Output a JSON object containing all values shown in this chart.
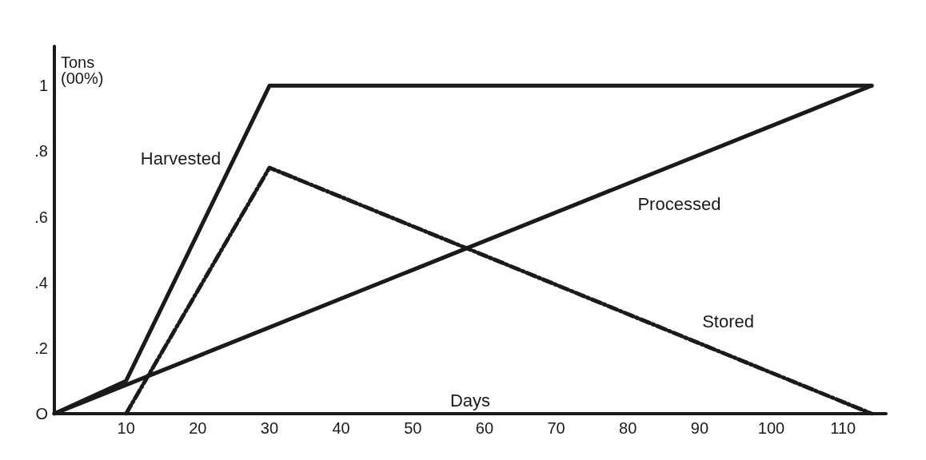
{
  "chart_data": {
    "type": "line",
    "xlabel": "Days",
    "ylabel": "Tons\n(00%)",
    "xlim": [
      0,
      116
    ],
    "xticks": [
      10,
      20,
      30,
      40,
      50,
      60,
      70,
      80,
      90,
      100,
      110
    ],
    "ylim": [
      0,
      1.12
    ],
    "yticks": [
      {
        "value": 0,
        "label": "O"
      },
      {
        "value": 0.2,
        "label": ".2"
      },
      {
        "value": 0.4,
        "label": ".4"
      },
      {
        "value": 0.6,
        "label": ".6"
      },
      {
        "value": 0.8,
        "label": ".8"
      },
      {
        "value": 1,
        "label": "1"
      }
    ],
    "grid": false,
    "marker": "none",
    "series": [
      {
        "name": "Harvested",
        "color": "#1a1a1a",
        "line_style": "solid",
        "x": [
          0,
          10,
          30,
          114
        ],
        "values": [
          0,
          0.1,
          1,
          1
        ]
      },
      {
        "name": "Processed",
        "color": "#1a1a1a",
        "line_style": "solid",
        "x": [
          0,
          114
        ],
        "values": [
          0,
          1
        ]
      },
      {
        "name": "Stored",
        "color": "#1a1a1a",
        "line_style": "dashed",
        "x": [
          10,
          30,
          114
        ],
        "values": [
          0,
          0.75,
          0
        ]
      }
    ]
  }
}
